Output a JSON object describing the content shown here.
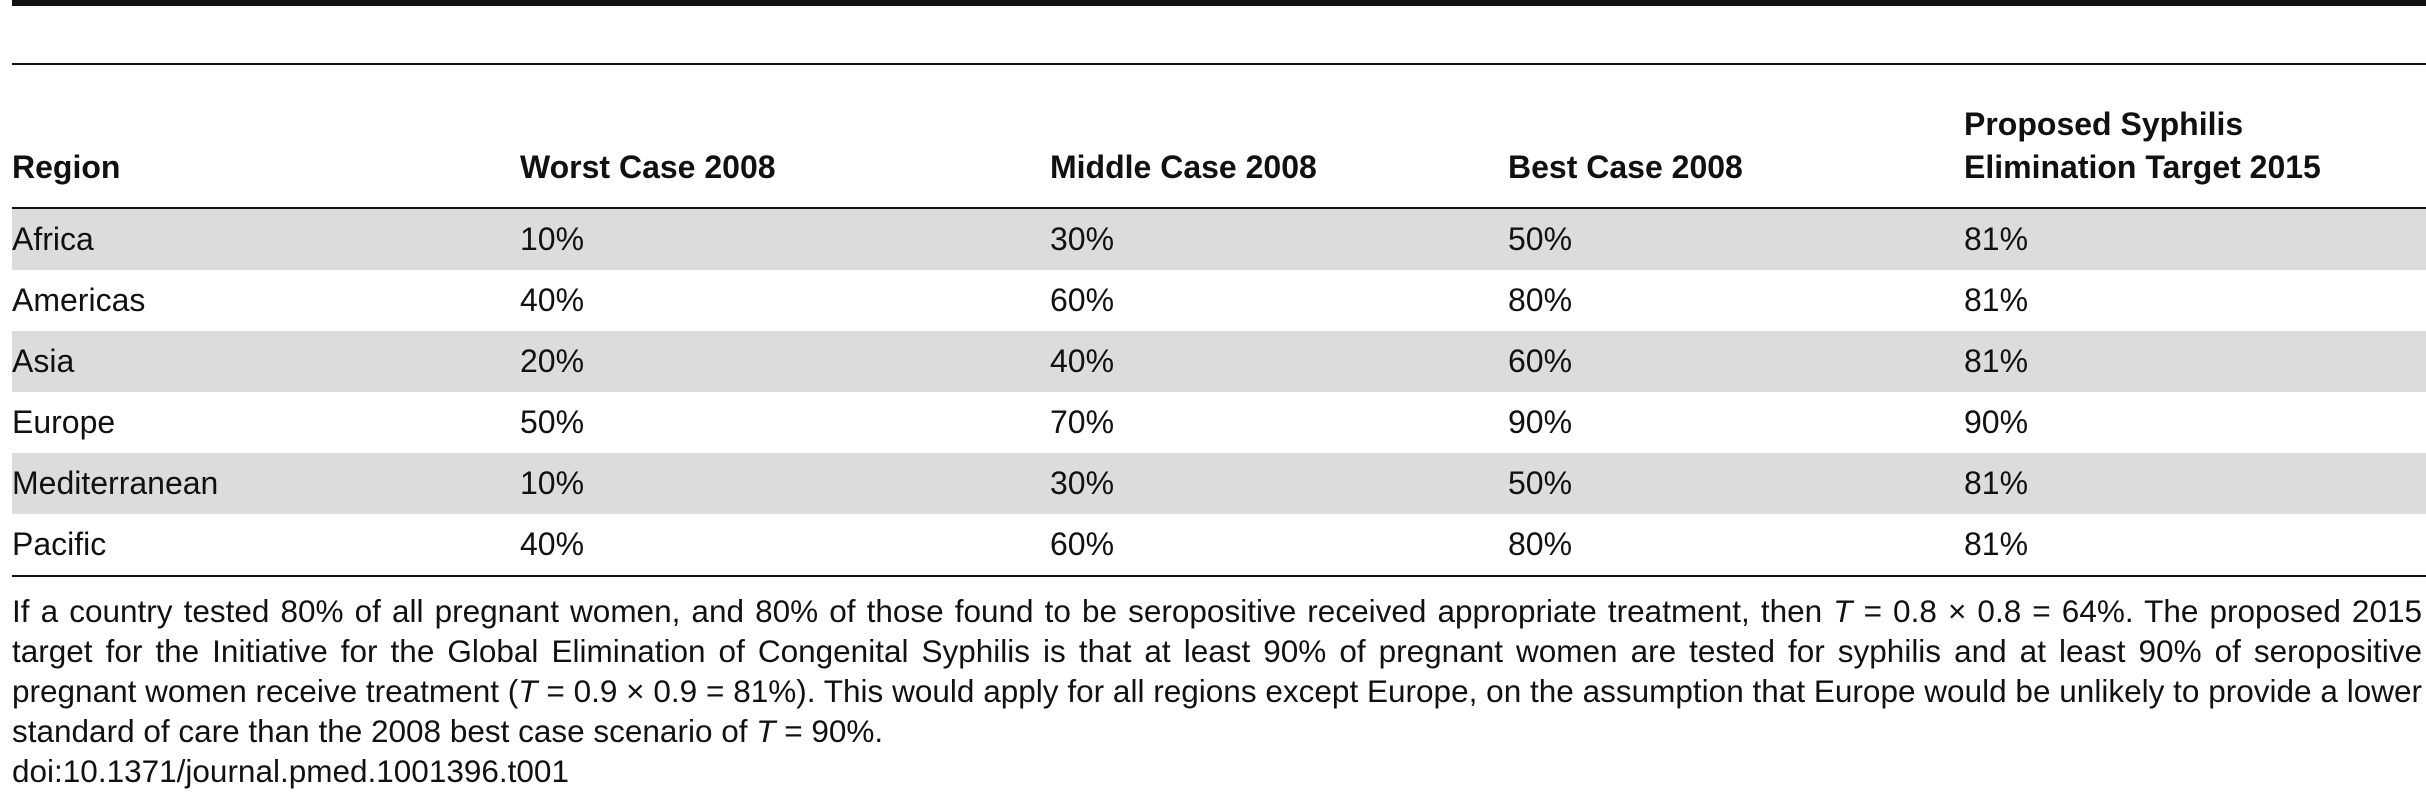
{
  "table": {
    "headers": [
      "Region",
      "Worst Case 2008",
      "Middle Case 2008",
      "Best Case 2008",
      "Proposed Syphilis Elimination Target 2015"
    ],
    "header_lines": {
      "target_line1": "Proposed Syphilis",
      "target_line2": "Elimination Target 2015"
    },
    "rows": [
      [
        "Africa",
        "10%",
        "30%",
        "50%",
        "81%"
      ],
      [
        "Americas",
        "40%",
        "60%",
        "80%",
        "81%"
      ],
      [
        "Asia",
        "20%",
        "40%",
        "60%",
        "81%"
      ],
      [
        "Europe",
        "50%",
        "70%",
        "90%",
        "90%"
      ],
      [
        "Mediterranean",
        "10%",
        "30%",
        "50%",
        "81%"
      ],
      [
        "Pacific",
        "40%",
        "60%",
        "80%",
        "81%"
      ]
    ]
  },
  "footnote": {
    "part1": "If a country tested 80% of all pregnant women, and 80% of those found to be seropositive received appropriate treatment, then ",
    "var1": "T",
    "part2": " = 0.8 × 0.8 = 64%. The proposed 2015 target for the Initiative for the Global Elimination of Congenital Syphilis is that at least 90% of pregnant women are tested for syphilis and at least 90% of seropositive pregnant women receive treatment (",
    "var2": "T",
    "part3": " = 0.9 × 0.9 = 81%). This would apply for all regions except Europe, on the assumption that Europe would be unlikely to provide a lower standard of care than the 2008 best case scenario of ",
    "var3": "T",
    "part4": " = 90%."
  },
  "doi": "doi:10.1371/journal.pmed.1001396.t001"
}
